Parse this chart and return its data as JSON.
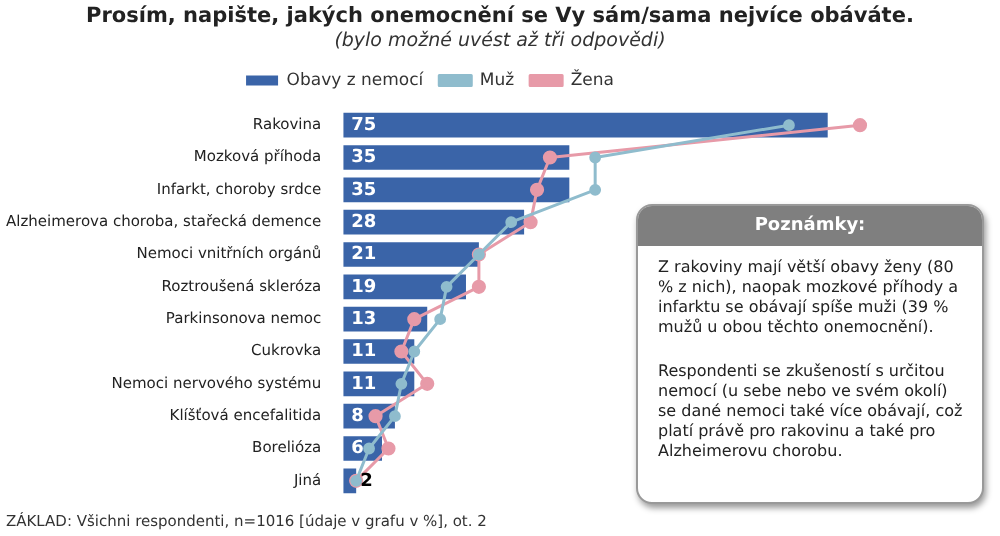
{
  "chart_data": {
    "type": "bar",
    "orientation": "horizontal",
    "title": "Prosím, napište, jakých onemocnění se Vy sám/sama nejvíce obáváte.",
    "subtitle": "(bylo možné uvést až tři odpovědi)",
    "categories": [
      "Rakovina",
      "Mozková příhoda",
      "Infarkt, choroby srdce",
      "Alzheimerova choroba, stařecká demence",
      "Nemoci vnitřních orgánů",
      "Roztroušená skleróza",
      "Parkinsonova nemoc",
      "Cukrovka",
      "Nemoci nervového systému",
      "Klíšťová encefalitida",
      "Borelióza",
      "Jiná"
    ],
    "series": [
      {
        "name": "Obavy z nemocí",
        "color": "#3a64a8",
        "values": [
          75,
          35,
          35,
          28,
          21,
          19,
          13,
          11,
          11,
          8,
          6,
          2
        ],
        "value_labels": [
          "75",
          "35",
          "35",
          "28",
          "21",
          "19",
          "13",
          "11",
          "11",
          "8",
          "6",
          "2"
        ]
      },
      {
        "name": "Muž",
        "type": "line",
        "color": "#8fbccd",
        "values": [
          69,
          39,
          39,
          26,
          21,
          16,
          15,
          11,
          9,
          8,
          4,
          2
        ]
      },
      {
        "name": "Žena",
        "type": "line",
        "color": "#e79aa8",
        "values": [
          80,
          32,
          30,
          29,
          21,
          21,
          11,
          9,
          13,
          5,
          7,
          2
        ]
      }
    ],
    "tick_labels": "y",
    "legend": "top",
    "marker": "circle",
    "line_style": "solid",
    "annotations": [
      "Poznámky:",
      "Z rakoviny mají větší obavy ženy (80 % z nich), naopak mozkové příhody a infarktu se obávají spíše muži (39 % mužů u obou těchto onemocnění).",
      "Respondenti se zkušeností s určitou nemocí (u sebe nebo ve svém okolí) se dané nemoci také více obávají, což platí právě pro rakovinu a také pro Alzheimerovu chorobu.",
      "ZÁKLAD: Všichni respondenti, n=1016 [údaje v grafu v %], ot. 2"
    ]
  }
}
